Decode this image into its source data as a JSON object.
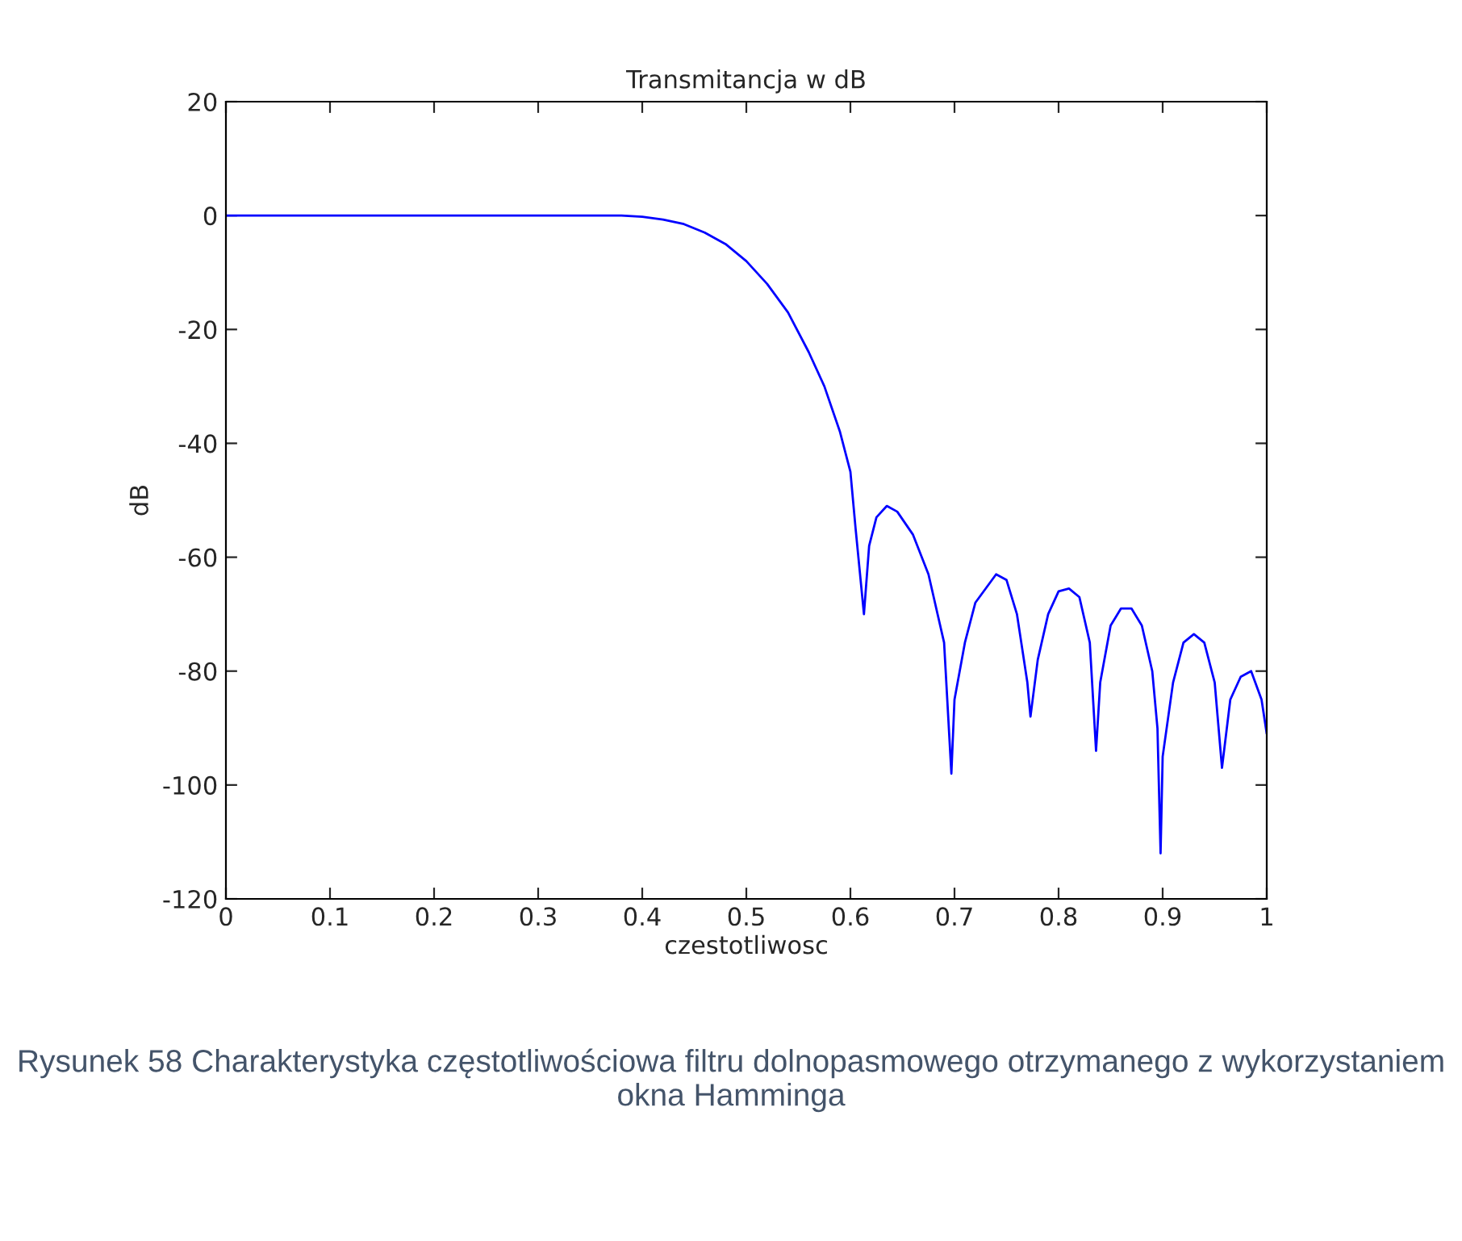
{
  "chart_data": {
    "type": "line",
    "title": "Transmitancja w dB",
    "xlabel": "czestotliwosc",
    "ylabel": "dB",
    "x": [
      0,
      0.3,
      0.38,
      0.4,
      0.42,
      0.44,
      0.46,
      0.48,
      0.5,
      0.52,
      0.54,
      0.56,
      0.575,
      0.59,
      0.6,
      0.605,
      0.613,
      0.618,
      0.625,
      0.635,
      0.645,
      0.66,
      0.675,
      0.69,
      0.697,
      0.7,
      0.71,
      0.72,
      0.74,
      0.75,
      0.76,
      0.77,
      0.773,
      0.78,
      0.79,
      0.8,
      0.81,
      0.82,
      0.83,
      0.836,
      0.84,
      0.85,
      0.86,
      0.87,
      0.88,
      0.89,
      0.895,
      0.898,
      0.9,
      0.91,
      0.92,
      0.93,
      0.94,
      0.95,
      0.957,
      0.965,
      0.975,
      0.985,
      0.995,
      1.0
    ],
    "series": [
      {
        "color": "#0000ff",
        "values": [
          0,
          0,
          0,
          -0.2,
          -0.7,
          -1.5,
          -3,
          -5,
          -8,
          -12,
          -17,
          -24,
          -30,
          -38,
          -45,
          -55,
          -70,
          -58,
          -53,
          -51,
          -52,
          -56,
          -63,
          -75,
          -98,
          -85,
          -75,
          -68,
          -63,
          -64,
          -70,
          -82,
          -88,
          -78,
          -70,
          -66,
          -65.5,
          -67,
          -75,
          -94,
          -82,
          -72,
          -69,
          -69,
          -72,
          -80,
          -90,
          -112,
          -95,
          -82,
          -75,
          -73.5,
          -75,
          -82,
          -97,
          -85,
          -81,
          -80,
          -85,
          -91
        ]
      }
    ],
    "xlim": [
      0,
      1
    ],
    "xticks": [
      0,
      0.1,
      0.2,
      0.3,
      0.4,
      0.5,
      0.6,
      0.7,
      0.8,
      0.9,
      1
    ],
    "ylim": [
      -120,
      20
    ],
    "yticks": [
      -120,
      -100,
      -80,
      -60,
      -40,
      -20,
      0,
      20
    ],
    "grid": false,
    "legend": false,
    "annotations": [
      "Rysunek 58 Charakterystyka częstotliwościowa filtru dolnopasmowego otrzymanego z wykorzystaniem okna Hamminga"
    ]
  }
}
